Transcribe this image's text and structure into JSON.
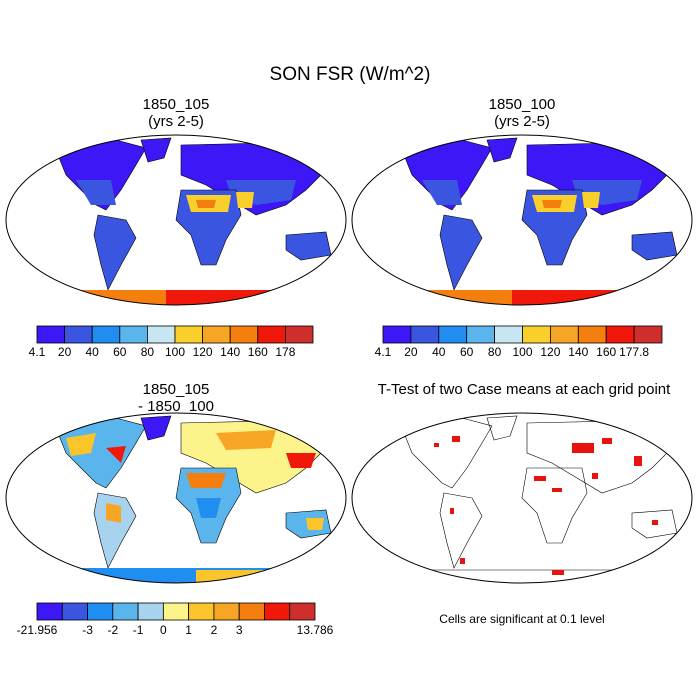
{
  "title": "SON FSR (W/m^2)",
  "panels": [
    {
      "id": "p1",
      "title1": "1850_105",
      "title2": "(yrs 2-5)"
    },
    {
      "id": "p2",
      "title1": "1850_100",
      "title2": "(yrs 2-5)"
    },
    {
      "id": "p3",
      "title1": "1850_105",
      "title2": "- 1850_100"
    },
    {
      "id": "p4",
      "title1": "T-Test of two Case means at each grid point",
      "title2": ""
    }
  ],
  "colorbars": [
    {
      "id": "cb1",
      "colors": [
        "#3d17f5",
        "#3a56e0",
        "#1f8ef0",
        "#5ab5ec",
        "#c7e6f2",
        "#f9cf2c",
        "#f7a524",
        "#f47f0f",
        "#f0180b",
        "#cf2f2c"
      ],
      "labels": [
        "4.1",
        "20",
        "40",
        "60",
        "80",
        "100",
        "120",
        "140",
        "160",
        "178"
      ]
    },
    {
      "id": "cb2",
      "colors": [
        "#3d17f5",
        "#3a56e0",
        "#1f8ef0",
        "#5ab5ec",
        "#c7e6f2",
        "#f9cf2c",
        "#f7a524",
        "#f47f0f",
        "#f0180b",
        "#cf2f2c"
      ],
      "labels": [
        "4.1",
        "20",
        "40",
        "60",
        "80",
        "100",
        "120",
        "140",
        "160",
        "177.8"
      ]
    },
    {
      "id": "cb3",
      "colors": [
        "#3d17f5",
        "#3a56e0",
        "#1f8ef0",
        "#5ab5ec",
        "#a7d3ee",
        "#fcf48a",
        "#f9c52a",
        "#f7a524",
        "#f47f0f",
        "#f0180b",
        "#cf2f2c"
      ],
      "labels": [
        "-21.956",
        "-3",
        "-2",
        "-1",
        "0",
        "1",
        "2",
        "3",
        "13.786"
      ]
    }
  ],
  "footnote": "Cells are significant at 0.1 level",
  "colors": {
    "land_low": "#3a56e0",
    "land_mid": "#1f8ef0",
    "desert": "#f9cf2c",
    "antarctica": "#f0180b",
    "significant": "#e8130f"
  }
}
